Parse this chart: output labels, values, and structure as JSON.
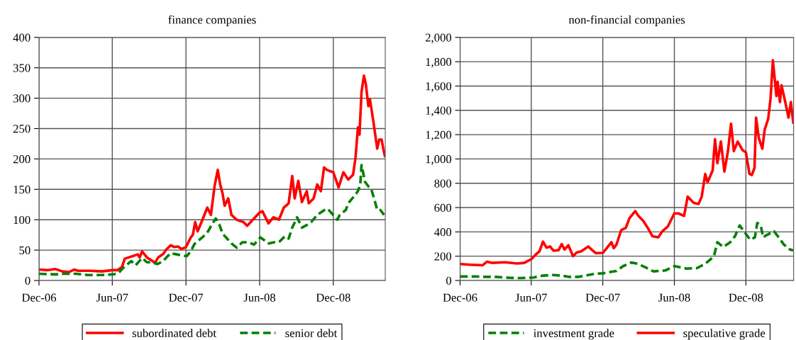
{
  "chart_data": [
    {
      "type": "line",
      "title": "finance companies",
      "grid": true,
      "legend": "bottom",
      "xlim": [
        "2006-12-01",
        "2009-04-09"
      ],
      "xticks": [
        {
          "value": "2006-12-01",
          "label": "Dec-06"
        },
        {
          "value": "2007-06-01",
          "label": "Jun-07"
        },
        {
          "value": "2007-12-01",
          "label": "Dec-07"
        },
        {
          "value": "2008-06-01",
          "label": "Jun-08"
        },
        {
          "value": "2008-12-01",
          "label": "Dec-08"
        }
      ],
      "ylim": [
        0,
        400
      ],
      "yticks": [
        0,
        50,
        100,
        150,
        200,
        250,
        300,
        350,
        400
      ],
      "series": [
        {
          "name": "subordinated debt",
          "color": "#ff0000",
          "line_style": "solid",
          "x": [
            "2006-12-01",
            "2006-12-22",
            "2007-01-10",
            "2007-01-28",
            "2007-02-14",
            "2007-02-26",
            "2007-03-08",
            "2007-04-07",
            "2007-05-06",
            "2007-06-01",
            "2007-06-13",
            "2007-06-25",
            "2007-07-02",
            "2007-07-21",
            "2007-08-03",
            "2007-08-08",
            "2007-08-14",
            "2007-08-26",
            "2007-09-07",
            "2007-09-15",
            "2007-09-23",
            "2007-10-06",
            "2007-10-12",
            "2007-10-24",
            "2007-11-02",
            "2007-11-11",
            "2007-11-20",
            "2007-12-01",
            "2007-12-13",
            "2007-12-18",
            "2007-12-24",
            "2007-12-30",
            "2008-01-11",
            "2008-01-23",
            "2008-02-01",
            "2008-02-10",
            "2008-02-18",
            "2008-02-24",
            "2008-03-01",
            "2008-03-06",
            "2008-03-15",
            "2008-03-23",
            "2008-04-05",
            "2008-04-22",
            "2008-05-01",
            "2008-05-15",
            "2008-06-01",
            "2008-06-08",
            "2008-06-23",
            "2008-07-05",
            "2008-07-19",
            "2008-07-31",
            "2008-08-12",
            "2008-08-21",
            "2008-08-27",
            "2008-09-05",
            "2008-09-14",
            "2008-09-26",
            "2008-10-01",
            "2008-10-13",
            "2008-10-22",
            "2008-10-31",
            "2008-11-08",
            "2008-11-15",
            "2008-12-01",
            "2008-12-14",
            "2008-12-26",
            "2009-01-07",
            "2009-01-19",
            "2009-01-25",
            "2009-01-31",
            "2009-02-04",
            "2009-02-09",
            "2009-02-15",
            "2009-02-20",
            "2009-02-26",
            "2009-03-02",
            "2009-03-11",
            "2009-03-20",
            "2009-03-25",
            "2009-03-31",
            "2009-04-04",
            "2009-04-08"
          ],
          "values": [
            18,
            17,
            19,
            15,
            14,
            18,
            16,
            16,
            15,
            17,
            17,
            22,
            36,
            40,
            43,
            38,
            48,
            38,
            33,
            29,
            38,
            44,
            50,
            58,
            55,
            56,
            52,
            55,
            71,
            75,
            96,
            81,
            100,
            120,
            108,
            155,
            182,
            158,
            143,
            123,
            135,
            108,
            100,
            96,
            90,
            100,
            112,
            114,
            94,
            104,
            100,
            120,
            127,
            172,
            135,
            164,
            129,
            147,
            127,
            135,
            158,
            147,
            186,
            182,
            178,
            153,
            178,
            166,
            174,
            201,
            252,
            240,
            310,
            337,
            322,
            287,
            298,
            259,
            217,
            232,
            232,
            217,
            205
          ]
        },
        {
          "name": "senior debt",
          "color": "#008000",
          "line_style": "dashed",
          "x": [
            "2006-12-01",
            "2007-01-10",
            "2007-02-02",
            "2007-03-03",
            "2007-04-01",
            "2007-05-06",
            "2007-06-02",
            "2007-06-16",
            "2007-06-27",
            "2007-07-09",
            "2007-07-18",
            "2007-07-29",
            "2007-08-14",
            "2007-08-26",
            "2007-09-07",
            "2007-09-21",
            "2007-10-06",
            "2007-10-12",
            "2007-10-24",
            "2007-11-08",
            "2007-11-16",
            "2007-12-03",
            "2007-12-13",
            "2007-12-22",
            "2008-01-14",
            "2008-01-25",
            "2008-02-07",
            "2008-02-13",
            "2008-02-22",
            "2008-03-01",
            "2008-03-12",
            "2008-03-23",
            "2008-04-05",
            "2008-04-19",
            "2008-05-04",
            "2008-05-18",
            "2008-06-03",
            "2008-06-23",
            "2008-07-07",
            "2008-07-19",
            "2008-08-03",
            "2008-08-12",
            "2008-08-21",
            "2008-09-02",
            "2008-09-14",
            "2008-09-28",
            "2008-10-07",
            "2008-10-22",
            "2008-11-09",
            "2008-11-17",
            "2008-12-11",
            "2008-12-17",
            "2009-01-01",
            "2009-01-07",
            "2009-01-22",
            "2009-01-31",
            "2009-02-06",
            "2009-02-09",
            "2009-02-18",
            "2009-02-26",
            "2009-03-05",
            "2009-03-14",
            "2009-03-20",
            "2009-03-28",
            "2009-04-06"
          ],
          "values": [
            11,
            10,
            11,
            11,
            9,
            9,
            10,
            12,
            20,
            27,
            32,
            25,
            37,
            30,
            30,
            27,
            32,
            37,
            45,
            43,
            42,
            40,
            48,
            60,
            73,
            81,
            96,
            102,
            92,
            77,
            69,
            61,
            54,
            63,
            63,
            59,
            71,
            61,
            63,
            63,
            73,
            69,
            87,
            104,
            87,
            92,
            96,
            108,
            116,
            118,
            100,
            108,
            116,
            127,
            139,
            147,
            158,
            190,
            162,
            155,
            151,
            131,
            116,
            116,
            108
          ]
        }
      ]
    },
    {
      "type": "line",
      "title": "non-financial companies",
      "grid": true,
      "legend": "bottom",
      "xlim": [
        "2006-12-01",
        "2009-04-02"
      ],
      "xticks": [
        {
          "value": "2006-12-01",
          "label": "Dec-06"
        },
        {
          "value": "2007-06-01",
          "label": "Jun-07"
        },
        {
          "value": "2007-12-01",
          "label": "Dec-07"
        },
        {
          "value": "2008-06-01",
          "label": "Jun-08"
        },
        {
          "value": "2008-12-01",
          "label": "Dec-08"
        }
      ],
      "ylim": [
        0,
        2000
      ],
      "yticks": [
        0,
        200,
        400,
        600,
        800,
        {
          "value": 1000,
          "label": "1,000"
        },
        {
          "value": 1200,
          "label": "1,200"
        },
        {
          "value": 1400,
          "label": "1,400"
        },
        {
          "value": 1600,
          "label": "1,600"
        },
        {
          "value": 1800,
          "label": "1,800"
        },
        {
          "value": 2000,
          "label": "2,000"
        }
      ],
      "series": [
        {
          "name": "investment grade",
          "color": "#008000",
          "line_style": "dashed",
          "x": [
            "2006-12-01",
            "2007-01-08",
            "2007-02-02",
            "2007-02-26",
            "2007-04-08",
            "2007-05-07",
            "2007-06-07",
            "2007-07-01",
            "2007-07-25",
            "2007-08-19",
            "2007-09-04",
            "2007-10-01",
            "2007-10-25",
            "2007-11-10",
            "2007-12-01",
            "2008-01-05",
            "2008-01-22",
            "2008-02-12",
            "2008-02-28",
            "2008-03-19",
            "2008-04-09",
            "2008-05-09",
            "2008-06-02",
            "2008-07-02",
            "2008-07-29",
            "2008-08-19",
            "2008-09-10",
            "2008-09-19",
            "2008-10-04",
            "2008-10-22",
            "2008-11-03",
            "2008-11-15",
            "2008-11-24",
            "2008-12-12",
            "2008-12-24",
            "2008-12-30",
            "2009-01-08",
            "2009-01-14",
            "2009-01-23",
            "2009-02-11",
            "2009-02-23",
            "2009-03-08",
            "2009-03-23",
            "2009-04-01"
          ],
          "values": [
            33,
            33,
            30,
            30,
            22,
            20,
            25,
            40,
            45,
            40,
            30,
            30,
            45,
            55,
            59,
            79,
            118,
            148,
            138,
            108,
            75,
            83,
            118,
            98,
            102,
            138,
            197,
            315,
            276,
            315,
            364,
            453,
            414,
            335,
            355,
            473,
            453,
            355,
            374,
            404,
            355,
            296,
            256,
            246
          ]
        },
        {
          "name": "speculative grade",
          "color": "#ff0000",
          "line_style": "solid",
          "x": [
            "2006-12-01",
            "2006-12-27",
            "2007-01-27",
            "2007-02-08",
            "2007-02-20",
            "2007-03-26",
            "2007-04-26",
            "2007-05-14",
            "2007-06-01",
            "2007-06-13",
            "2007-06-22",
            "2007-07-01",
            "2007-07-10",
            "2007-07-19",
            "2007-07-28",
            "2007-08-10",
            "2007-08-18",
            "2007-08-25",
            "2007-09-04",
            "2007-09-16",
            "2007-09-25",
            "2007-10-07",
            "2007-10-25",
            "2007-11-04",
            "2007-11-13",
            "2007-12-01",
            "2007-12-11",
            "2007-12-23",
            "2007-12-29",
            "2008-01-05",
            "2008-01-17",
            "2008-01-29",
            "2008-02-07",
            "2008-02-22",
            "2008-03-01",
            "2008-03-13",
            "2008-03-25",
            "2008-04-06",
            "2008-04-21",
            "2008-05-01",
            "2008-05-15",
            "2008-06-01",
            "2008-06-11",
            "2008-06-26",
            "2008-07-05",
            "2008-07-20",
            "2008-08-02",
            "2008-08-10",
            "2008-08-19",
            "2008-08-25",
            "2008-09-07",
            "2008-09-13",
            "2008-09-19",
            "2008-09-28",
            "2008-10-07",
            "2008-10-16",
            "2008-10-24",
            "2008-10-31",
            "2008-11-10",
            "2008-11-22",
            "2008-12-01",
            "2008-12-10",
            "2008-12-16",
            "2008-12-23",
            "2008-12-27",
            "2009-01-03",
            "2009-01-12",
            "2009-01-18",
            "2009-01-27",
            "2009-02-02",
            "2009-02-08",
            "2009-02-17",
            "2009-02-20",
            "2009-02-26",
            "2009-03-02",
            "2009-03-11",
            "2009-03-20",
            "2009-03-26",
            "2009-04-01"
          ],
          "values": [
            135,
            130,
            125,
            155,
            145,
            150,
            140,
            145,
            175,
            215,
            240,
            320,
            270,
            280,
            245,
            250,
            300,
            255,
            290,
            200,
            230,
            240,
            280,
            250,
            225,
            227,
            266,
            315,
            266,
            296,
            414,
            433,
            512,
            571,
            532,
            493,
            433,
            364,
            355,
            404,
            443,
            552,
            552,
            532,
            690,
            640,
            630,
            690,
            877,
            808,
            906,
            1162,
            965,
            1143,
            896,
            1064,
            1290,
            1064,
            1143,
            1074,
            1054,
            877,
            867,
            926,
            1340,
            1172,
            1084,
            1241,
            1330,
            1497,
            1812,
            1517,
            1635,
            1468,
            1606,
            1478,
            1340,
            1468,
            1300
          ]
        }
      ]
    }
  ]
}
